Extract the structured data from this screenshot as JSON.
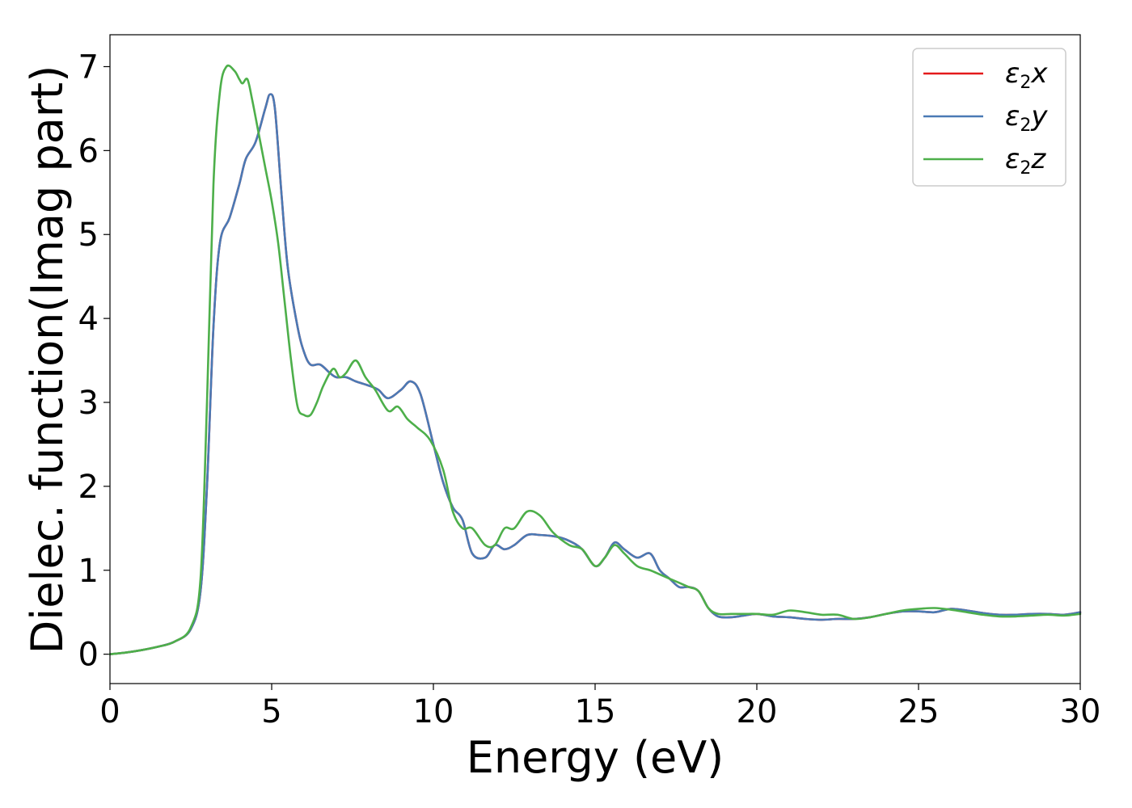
{
  "chart_data": {
    "type": "line",
    "title": "",
    "xlabel": "Energy (eV)",
    "ylabel": "Dielec. function(Imag part)",
    "xlim": [
      0,
      30
    ],
    "ylim": [
      -0.35,
      7.38
    ],
    "xticks": [
      0,
      5,
      10,
      15,
      20,
      25,
      30
    ],
    "yticks": [
      0,
      1,
      2,
      3,
      4,
      5,
      6,
      7
    ],
    "xtick_labels": [
      "0",
      "5",
      "10",
      "15",
      "20",
      "25",
      "30"
    ],
    "ytick_labels": [
      "0",
      "1",
      "2",
      "3",
      "4",
      "5",
      "6",
      "7"
    ],
    "grid": false,
    "legend_position": "top-right",
    "legend": [
      {
        "base": "ε",
        "sub": "2",
        "axis": "x",
        "color": "#e41a1c"
      },
      {
        "base": "ε",
        "sub": "2",
        "axis": "y",
        "color": "#4a7ab5"
      },
      {
        "base": "ε",
        "sub": "2",
        "axis": "z",
        "color": "#4daf4a"
      }
    ],
    "series": [
      {
        "name": "ε2x",
        "color": "#e41a1c",
        "x": [
          0,
          0.5,
          1.0,
          1.5,
          2.0,
          2.5,
          2.8,
          3.0,
          3.2,
          3.4,
          3.7,
          4.0,
          4.2,
          4.5,
          4.8,
          4.95,
          5.1,
          5.3,
          5.5,
          5.8,
          6.0,
          6.2,
          6.5,
          6.8,
          7.0,
          7.3,
          7.6,
          8.0,
          8.3,
          8.6,
          9.0,
          9.3,
          9.6,
          10.0,
          10.3,
          10.6,
          10.9,
          11.2,
          11.6,
          11.9,
          12.2,
          12.5,
          12.9,
          13.3,
          13.8,
          14.2,
          14.6,
          15.0,
          15.3,
          15.6,
          15.9,
          16.3,
          16.7,
          17.0,
          17.3,
          17.6,
          17.9,
          18.2,
          18.5,
          18.8,
          19.2,
          19.6,
          20.0,
          20.5,
          21.0,
          21.5,
          22.0,
          22.5,
          23.0,
          23.5,
          24.0,
          24.5,
          25.0,
          25.5,
          26.0,
          26.5,
          27.0,
          27.5,
          28.0,
          28.5,
          29.0,
          29.5,
          30.0
        ],
        "y": [
          0.0,
          0.02,
          0.05,
          0.09,
          0.15,
          0.3,
          0.75,
          2.0,
          3.9,
          4.9,
          5.2,
          5.6,
          5.9,
          6.1,
          6.5,
          6.67,
          6.5,
          5.5,
          4.6,
          3.9,
          3.6,
          3.45,
          3.45,
          3.35,
          3.3,
          3.3,
          3.25,
          3.2,
          3.15,
          3.05,
          3.15,
          3.25,
          3.1,
          2.5,
          2.05,
          1.75,
          1.6,
          1.2,
          1.15,
          1.3,
          1.25,
          1.3,
          1.42,
          1.42,
          1.4,
          1.35,
          1.25,
          1.05,
          1.15,
          1.33,
          1.25,
          1.15,
          1.2,
          1.0,
          0.9,
          0.8,
          0.8,
          0.75,
          0.55,
          0.45,
          0.44,
          0.46,
          0.48,
          0.45,
          0.44,
          0.42,
          0.41,
          0.42,
          0.42,
          0.44,
          0.48,
          0.51,
          0.51,
          0.5,
          0.54,
          0.52,
          0.49,
          0.47,
          0.47,
          0.48,
          0.48,
          0.47,
          0.5
        ]
      },
      {
        "name": "ε2y",
        "color": "#4a7ab5",
        "x": [
          0,
          0.5,
          1.0,
          1.5,
          2.0,
          2.5,
          2.8,
          3.0,
          3.2,
          3.4,
          3.7,
          4.0,
          4.2,
          4.5,
          4.8,
          4.95,
          5.1,
          5.3,
          5.5,
          5.8,
          6.0,
          6.2,
          6.5,
          6.8,
          7.0,
          7.3,
          7.6,
          8.0,
          8.3,
          8.6,
          9.0,
          9.3,
          9.6,
          10.0,
          10.3,
          10.6,
          10.9,
          11.2,
          11.6,
          11.9,
          12.2,
          12.5,
          12.9,
          13.3,
          13.8,
          14.2,
          14.6,
          15.0,
          15.3,
          15.6,
          15.9,
          16.3,
          16.7,
          17.0,
          17.3,
          17.6,
          17.9,
          18.2,
          18.5,
          18.8,
          19.2,
          19.6,
          20.0,
          20.5,
          21.0,
          21.5,
          22.0,
          22.5,
          23.0,
          23.5,
          24.0,
          24.5,
          25.0,
          25.5,
          26.0,
          26.5,
          27.0,
          27.5,
          28.0,
          28.5,
          29.0,
          29.5,
          30.0
        ],
        "y": [
          0.0,
          0.02,
          0.05,
          0.09,
          0.15,
          0.3,
          0.75,
          2.0,
          3.9,
          4.9,
          5.2,
          5.6,
          5.9,
          6.1,
          6.5,
          6.67,
          6.5,
          5.5,
          4.6,
          3.9,
          3.6,
          3.45,
          3.45,
          3.35,
          3.3,
          3.3,
          3.25,
          3.2,
          3.15,
          3.05,
          3.15,
          3.25,
          3.1,
          2.5,
          2.05,
          1.75,
          1.6,
          1.2,
          1.15,
          1.3,
          1.25,
          1.3,
          1.42,
          1.42,
          1.4,
          1.35,
          1.25,
          1.05,
          1.15,
          1.33,
          1.25,
          1.15,
          1.2,
          1.0,
          0.9,
          0.8,
          0.8,
          0.75,
          0.55,
          0.45,
          0.44,
          0.46,
          0.48,
          0.45,
          0.44,
          0.42,
          0.41,
          0.42,
          0.42,
          0.44,
          0.48,
          0.51,
          0.51,
          0.5,
          0.54,
          0.52,
          0.49,
          0.47,
          0.47,
          0.48,
          0.48,
          0.47,
          0.5
        ]
      },
      {
        "name": "ε2z",
        "color": "#4daf4a",
        "x": [
          0,
          0.5,
          1.0,
          1.5,
          2.0,
          2.5,
          2.8,
          3.0,
          3.2,
          3.4,
          3.6,
          3.85,
          4.0,
          4.1,
          4.25,
          4.4,
          4.6,
          4.8,
          5.0,
          5.2,
          5.4,
          5.6,
          5.8,
          6.0,
          6.2,
          6.4,
          6.6,
          6.9,
          7.1,
          7.3,
          7.6,
          7.9,
          8.2,
          8.6,
          8.9,
          9.2,
          9.5,
          9.9,
          10.3,
          10.6,
          10.9,
          11.2,
          11.6,
          11.9,
          12.2,
          12.5,
          12.9,
          13.3,
          13.7,
          14.2,
          14.6,
          15.0,
          15.3,
          15.6,
          15.9,
          16.3,
          16.7,
          17.0,
          17.3,
          17.6,
          17.9,
          18.2,
          18.5,
          18.8,
          19.2,
          19.6,
          20.0,
          20.5,
          21.0,
          21.5,
          22.0,
          22.5,
          23.0,
          23.5,
          24.0,
          24.5,
          25.0,
          25.5,
          26.0,
          26.5,
          27.0,
          27.5,
          28.0,
          28.5,
          29.0,
          29.5,
          30.0
        ],
        "y": [
          0.0,
          0.02,
          0.05,
          0.09,
          0.15,
          0.32,
          0.9,
          3.0,
          5.6,
          6.7,
          7.0,
          6.95,
          6.85,
          6.8,
          6.85,
          6.6,
          6.2,
          5.8,
          5.4,
          4.9,
          4.2,
          3.5,
          2.95,
          2.85,
          2.85,
          3.0,
          3.2,
          3.4,
          3.3,
          3.35,
          3.5,
          3.3,
          3.15,
          2.9,
          2.95,
          2.8,
          2.7,
          2.55,
          2.2,
          1.7,
          1.5,
          1.5,
          1.3,
          1.3,
          1.5,
          1.5,
          1.7,
          1.65,
          1.45,
          1.3,
          1.25,
          1.05,
          1.15,
          1.3,
          1.2,
          1.05,
          1.0,
          0.95,
          0.9,
          0.85,
          0.8,
          0.75,
          0.55,
          0.48,
          0.48,
          0.48,
          0.48,
          0.47,
          0.52,
          0.5,
          0.47,
          0.47,
          0.42,
          0.44,
          0.48,
          0.52,
          0.54,
          0.55,
          0.53,
          0.5,
          0.47,
          0.45,
          0.45,
          0.46,
          0.47,
          0.46,
          0.48
        ]
      }
    ]
  }
}
